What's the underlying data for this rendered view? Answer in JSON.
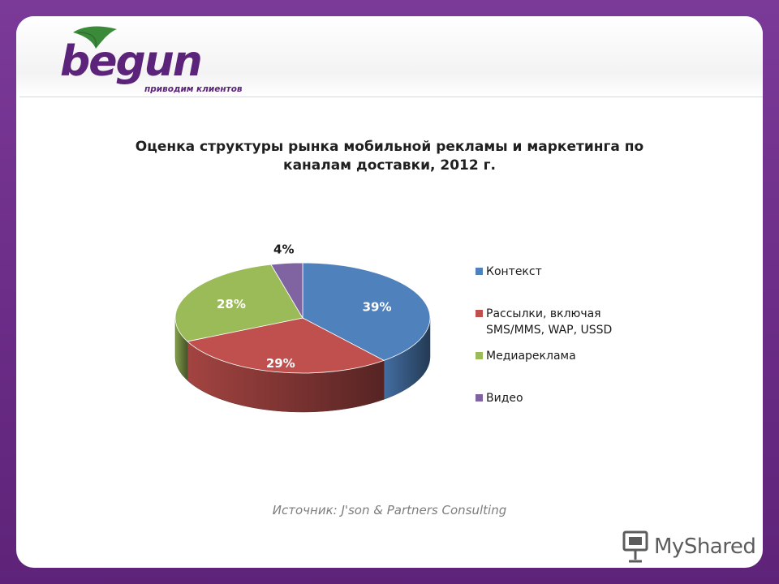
{
  "logo": {
    "name": "begun",
    "tagline": "приводим клиентов"
  },
  "colors": {
    "frame": "#6a2f87",
    "brand": "#5b2379",
    "leaf": "#3a8a3a"
  },
  "chart_data": {
    "type": "pie",
    "title": "Оценка структуры рынка мобильной рекламы и маркетинга по каналам доставки, 2012 г.",
    "slices": [
      {
        "label": "Контекст",
        "value": 39,
        "display": "39%",
        "color": "#4f81bd"
      },
      {
        "label": "Рассылки, включая SMS/MMS, WAP, USSD",
        "value": 29,
        "display": "29%",
        "color": "#c0504d"
      },
      {
        "label": "Медиареклама",
        "value": 28,
        "display": "28%",
        "color": "#9bbb59"
      },
      {
        "label": "Видео",
        "value": 4,
        "display": "4%",
        "color": "#8064a2"
      }
    ],
    "legend_position": "right",
    "style": "3d"
  },
  "legend": {
    "items": [
      {
        "label": "Контекст"
      },
      {
        "label": "Рассылки, включая\nSMS/MMS, WAP, USSD"
      },
      {
        "label": "Медиареклама"
      },
      {
        "label": "Видео"
      }
    ]
  },
  "source": "Источник: J'son & Partners Consulting",
  "watermark": {
    "text": "MyShared",
    "icon": "presentation-board-icon"
  }
}
